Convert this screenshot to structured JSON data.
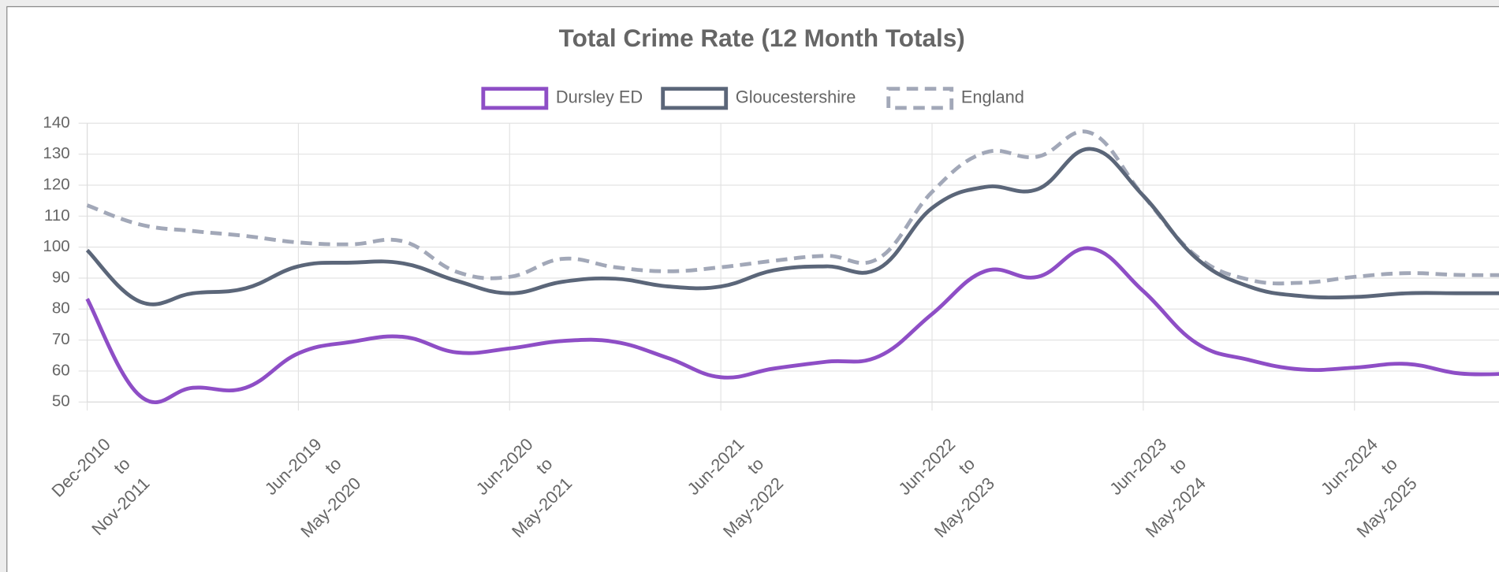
{
  "chart_data": {
    "type": "line",
    "title": "Total Crime Rate (12 Month Totals)",
    "categories": [
      [
        "Dec-2010",
        "to",
        "Nov-2011"
      ],
      null,
      null,
      null,
      [
        "Jun-2019",
        "to",
        "May-2020"
      ],
      null,
      null,
      null,
      [
        "Jun-2020",
        "to",
        "May-2021"
      ],
      null,
      null,
      null,
      [
        "Jun-2021",
        "to",
        "May-2022"
      ],
      null,
      null,
      null,
      [
        "Jun-2022",
        "to",
        "May-2023"
      ],
      null,
      null,
      null,
      [
        "Jun-2023",
        "to",
        "May-2024"
      ],
      null,
      null,
      null,
      [
        "Jun-2024",
        "to",
        "May-2025"
      ],
      null,
      null,
      null
    ],
    "series": [
      {
        "name": "Dursley ED",
        "color": "#8e4ec6",
        "dashed": false,
        "values": [
          83.3,
          52,
          54.6,
          54.6,
          65.7,
          69.4,
          71,
          66,
          67.3,
          69.7,
          69.4,
          64.2,
          58,
          60.8,
          63,
          64.8,
          78.4,
          92.2,
          90.4,
          99.6,
          85.8,
          69.1,
          63.6,
          60.5,
          61.1,
          62.3,
          59.2,
          59.2
        ]
      },
      {
        "name": "Gloucestershire",
        "color": "#5b6679",
        "dashed": false,
        "values": [
          99,
          82.4,
          85.1,
          86.7,
          93.8,
          95,
          94.7,
          89.1,
          85.1,
          88.8,
          89.8,
          87.3,
          87.3,
          92.5,
          93.8,
          93.2,
          112.6,
          119.4,
          118.7,
          131.7,
          116.6,
          96.5,
          87.3,
          84.2,
          83.9,
          85.1,
          85.1,
          85.1
        ]
      },
      {
        "name": "England",
        "color": "#a2a8b8",
        "dashed": true,
        "values": [
          113.5,
          107.3,
          105.2,
          103.6,
          101.5,
          100.9,
          101.8,
          92,
          90.4,
          96.2,
          93.5,
          92.2,
          93.5,
          95.6,
          97.2,
          96.5,
          117.8,
          130.5,
          129.2,
          136.9,
          116.6,
          97.2,
          89.5,
          88.5,
          90.4,
          91.6,
          91,
          91
        ]
      }
    ],
    "ylim": [
      50,
      140
    ],
    "yticks": [
      50,
      60,
      70,
      80,
      90,
      100,
      110,
      120,
      130,
      140
    ],
    "grid": true,
    "legend": "top"
  }
}
